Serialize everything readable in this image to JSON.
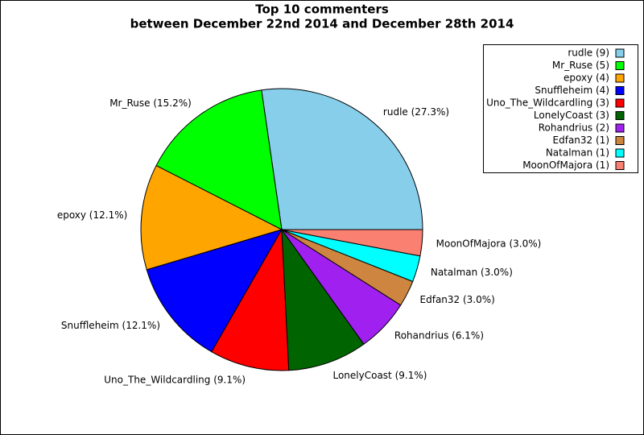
{
  "chart_data": {
    "type": "pie",
    "title": "Top 10 commenters",
    "subtitle": "between December 22nd 2014 and December 28th 2014",
    "categories": [
      "rudle",
      "Mr_Ruse",
      "epoxy",
      "Snuffleheim",
      "Uno_The_Wildcardling",
      "LonelyCoast",
      "Rohandrius",
      "Edfan32",
      "Natalman",
      "MoonOfMajora"
    ],
    "values": [
      27.3,
      15.2,
      12.1,
      12.1,
      9.1,
      9.1,
      6.1,
      3.0,
      3.0,
      3.0
    ],
    "value_labels": [
      "rudle (27.3%)",
      "Mr_Ruse (15.2%)",
      "epoxy (12.1%)",
      "Snuffleheim (12.1%)",
      "Uno_The_Wildcardling (9.1%)",
      "LonelyCoast (9.1%)",
      "Rohandrius (6.1%)",
      "Edfan32 (3.0%)",
      "Natalman (3.0%)",
      "MoonOfMajora (3.0%)"
    ],
    "legend_labels": [
      "rudle (9)",
      "Mr_Ruse (5)",
      "epoxy (4)",
      "Snuffleheim (4)",
      "Uno_The_Wildcardling (3)",
      "LonelyCoast (3)",
      "Rohandrius (2)",
      "Edfan32 (1)",
      "Natalman (1)",
      "MoonOfMajora (1)"
    ],
    "colors": [
      "#87ceeb",
      "#00ff00",
      "#ffa500",
      "#0000ff",
      "#ff0000",
      "#006400",
      "#a020f0",
      "#cd853f",
      "#00ffff",
      "#fa8072"
    ],
    "legend": "upper right"
  }
}
